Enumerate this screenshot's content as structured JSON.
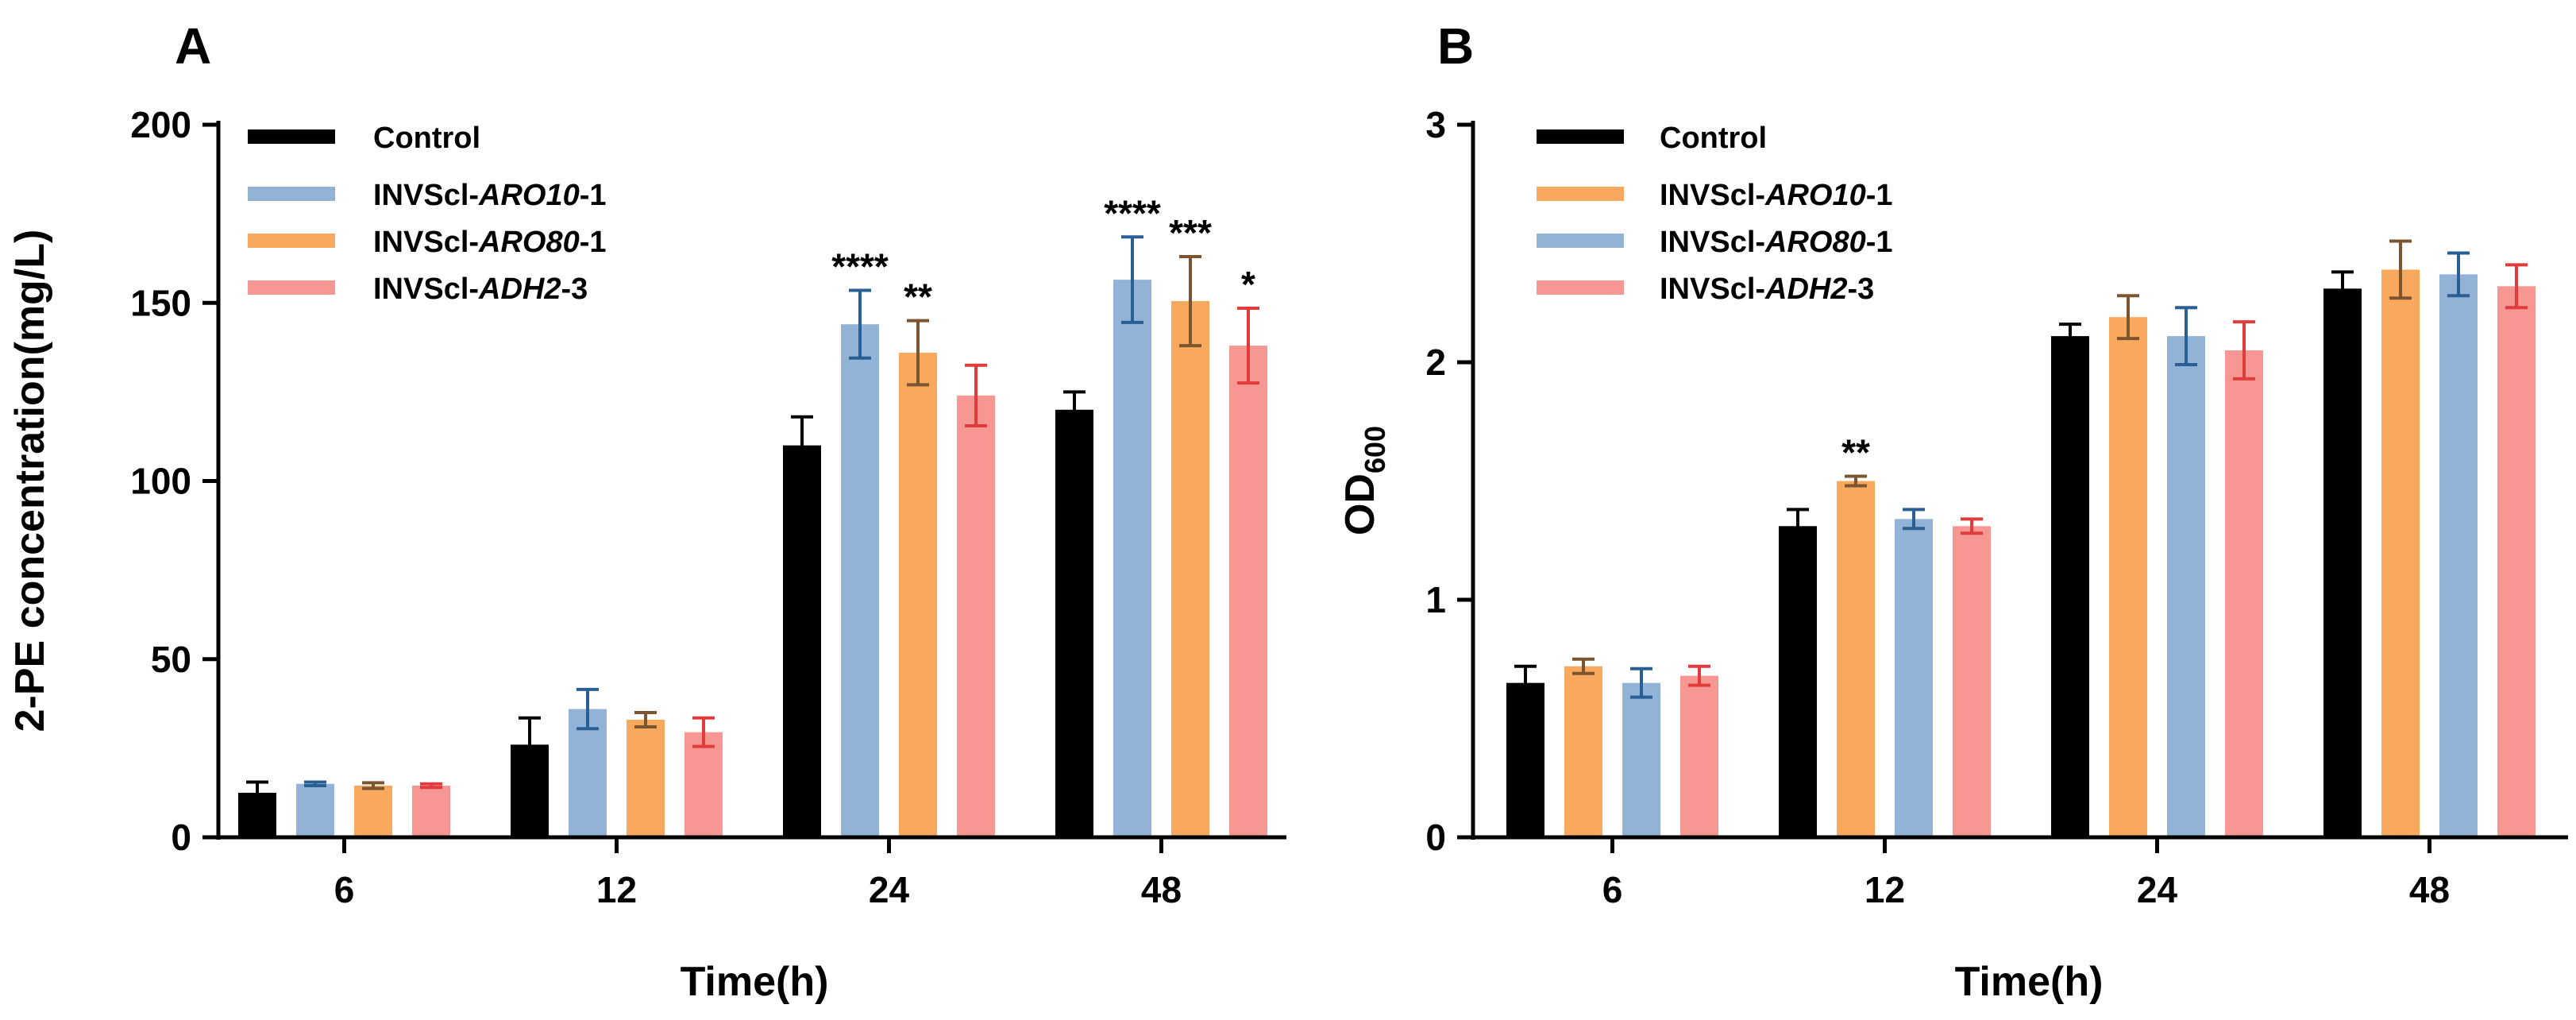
{
  "chart_data": [
    {
      "type": "bar",
      "panel": "A",
      "title": "",
      "xlabel": "Time(h)",
      "ylabel": "2-PE concentration(mg/L)",
      "ylim": [
        0,
        200
      ],
      "yticks": [
        "0",
        "50",
        "100",
        "150",
        "200"
      ],
      "categories": [
        "6",
        "12",
        "24",
        "48"
      ],
      "legend_position": "top-left",
      "series": [
        {
          "name": "Control",
          "legend": {
            "prefix": "Control",
            "gene": "",
            "suffix": ""
          },
          "color": "#000000",
          "values": [
            12.5,
            26,
            110,
            120
          ],
          "errors": [
            3,
            7.5,
            8,
            5
          ],
          "sig": [
            "",
            "",
            "",
            ""
          ]
        },
        {
          "name": "INVScl-ARO10-1",
          "legend": {
            "prefix": "INVScl-",
            "gene": "ARO10",
            "suffix": "-1"
          },
          "color": "#93b3d6",
          "values": [
            15,
            36,
            144,
            156.5
          ],
          "errors": [
            0.5,
            5.5,
            9.5,
            12
          ],
          "sig": [
            "",
            "",
            "****",
            "****"
          ]
        },
        {
          "name": "INVScl-ARO80-1",
          "legend": {
            "prefix": "INVScl-",
            "gene": "ARO80",
            "suffix": "-1"
          },
          "color": "#f9a95e",
          "values": [
            14.5,
            33,
            136,
            150.5
          ],
          "errors": [
            0.8,
            2,
            9,
            12.5
          ],
          "sig": [
            "",
            "",
            "**",
            "***"
          ]
        },
        {
          "name": "INVScl-ADH2-3",
          "legend": {
            "prefix": "INVScl-",
            "gene": "ADH2",
            "suffix": "-3"
          },
          "color": "#f79794",
          "values": [
            14.5,
            29.5,
            124,
            138
          ],
          "errors": [
            0.5,
            4,
            8.5,
            10.5
          ],
          "sig": [
            "",
            "",
            "",
            "*"
          ]
        }
      ]
    },
    {
      "type": "bar",
      "panel": "B",
      "title": "",
      "xlabel": "Time(h)",
      "ylabel": "OD",
      "ylabel_subscript": "600",
      "ylim": [
        0,
        3
      ],
      "yticks": [
        "0",
        "1",
        "2",
        "3"
      ],
      "categories": [
        "6",
        "12",
        "24",
        "48"
      ],
      "legend_position": "top-left",
      "series": [
        {
          "name": "Control",
          "legend": {
            "prefix": "Control",
            "gene": "",
            "suffix": ""
          },
          "color": "#000000",
          "values": [
            0.65,
            1.31,
            2.11,
            2.31
          ],
          "errors": [
            0.07,
            0.07,
            0.05,
            0.07
          ],
          "sig": [
            "",
            "",
            "",
            ""
          ]
        },
        {
          "name": "INVScl-ARO10-1",
          "legend": {
            "prefix": "INVScl-",
            "gene": "ARO10",
            "suffix": "-1"
          },
          "color": "#f9a95e",
          "values": [
            0.72,
            1.5,
            2.19,
            2.39
          ],
          "errors": [
            0.03,
            0.02,
            0.09,
            0.12
          ],
          "sig": [
            "",
            "**",
            "",
            ""
          ]
        },
        {
          "name": "INVScl-ARO80-1",
          "legend": {
            "prefix": "INVScl-",
            "gene": "ARO80",
            "suffix": "-1"
          },
          "color": "#93b3d6",
          "values": [
            0.65,
            1.34,
            2.11,
            2.37
          ],
          "errors": [
            0.06,
            0.04,
            0.12,
            0.09
          ],
          "sig": [
            "",
            "",
            "",
            ""
          ]
        },
        {
          "name": "INVScl-ADH2-3",
          "legend": {
            "prefix": "INVScl-",
            "gene": "ADH2",
            "suffix": "-3"
          },
          "color": "#f79794",
          "values": [
            0.68,
            1.31,
            2.05,
            2.32
          ],
          "errors": [
            0.04,
            0.03,
            0.12,
            0.09
          ],
          "sig": [
            "",
            "",
            "",
            ""
          ]
        }
      ]
    }
  ]
}
